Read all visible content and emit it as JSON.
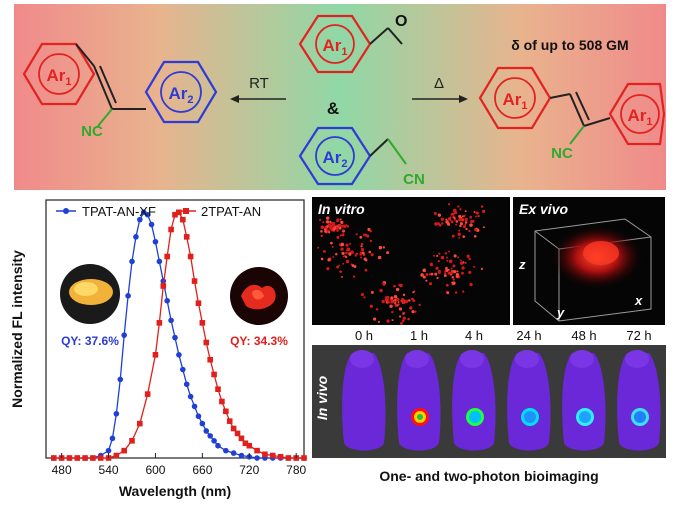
{
  "scheme": {
    "ar1": "Ar",
    "ar1_sub": "1",
    "ar2": "Ar",
    "ar2_sub": "2",
    "aldehyde_o": "O",
    "nc": "NC",
    "cn": "CN",
    "amp": "&",
    "rt": "RT",
    "delta": "Δ",
    "delta_note": "δ of up to 508 GM"
  },
  "chart_data": {
    "type": "line",
    "xlabel": "Wavelength (nm)",
    "ylabel": "Normalized FL intensity",
    "xlim": [
      460,
      790
    ],
    "ylim": [
      0,
      1.05
    ],
    "x_ticks": [
      480,
      540,
      600,
      660,
      720,
      780
    ],
    "series": [
      {
        "name": "TPAT-AN-XF",
        "color": "#1f3fd6",
        "marker": "circle",
        "x": [
          470,
          480,
          490,
          500,
          510,
          520,
          530,
          540,
          545,
          550,
          555,
          560,
          565,
          570,
          575,
          580,
          585,
          590,
          595,
          600,
          605,
          610,
          615,
          620,
          625,
          630,
          635,
          640,
          645,
          650,
          655,
          660,
          665,
          670,
          675,
          680,
          690,
          700,
          710,
          720,
          730,
          740,
          750,
          760,
          770,
          780,
          790
        ],
        "y": [
          0,
          0,
          0,
          0,
          0,
          0,
          0.01,
          0.03,
          0.08,
          0.18,
          0.32,
          0.5,
          0.66,
          0.8,
          0.9,
          0.97,
          1.0,
          0.99,
          0.95,
          0.88,
          0.8,
          0.72,
          0.64,
          0.56,
          0.49,
          0.42,
          0.36,
          0.3,
          0.25,
          0.21,
          0.17,
          0.14,
          0.11,
          0.09,
          0.07,
          0.05,
          0.03,
          0.02,
          0.01,
          0.005,
          0,
          0,
          0,
          0,
          0,
          0,
          0
        ]
      },
      {
        "name": "2TPAT-AN",
        "color": "#e0201c",
        "marker": "square",
        "x": [
          470,
          480,
          490,
          500,
          510,
          520,
          530,
          540,
          550,
          560,
          570,
          580,
          590,
          600,
          605,
          610,
          615,
          620,
          625,
          630,
          635,
          640,
          645,
          650,
          655,
          660,
          665,
          670,
          675,
          680,
          685,
          690,
          695,
          700,
          705,
          710,
          715,
          720,
          730,
          740,
          750,
          760,
          770,
          780,
          790
        ],
        "y": [
          0,
          0,
          0,
          0,
          0,
          0,
          0,
          0,
          0.01,
          0.03,
          0.07,
          0.14,
          0.26,
          0.42,
          0.55,
          0.7,
          0.82,
          0.93,
          0.99,
          1.0,
          0.97,
          0.9,
          0.82,
          0.72,
          0.63,
          0.55,
          0.47,
          0.4,
          0.34,
          0.28,
          0.23,
          0.19,
          0.15,
          0.12,
          0.1,
          0.08,
          0.06,
          0.05,
          0.03,
          0.015,
          0.01,
          0.005,
          0,
          0,
          0
        ]
      }
    ],
    "annotations": {
      "qy_left": "QY: 37.6%",
      "qy_right": "QY: 34.3%"
    }
  },
  "imaging": {
    "in_vitro": "In vitro",
    "ex_vivo": "Ex vivo",
    "in_vivo": "In vivo",
    "axis_z": "z",
    "axis_y": "y",
    "axis_x": "x",
    "times": [
      "0 h",
      "1 h",
      "4 h",
      "24 h",
      "48 h",
      "72 h"
    ],
    "caption": "One- and two-photon bioimaging"
  }
}
